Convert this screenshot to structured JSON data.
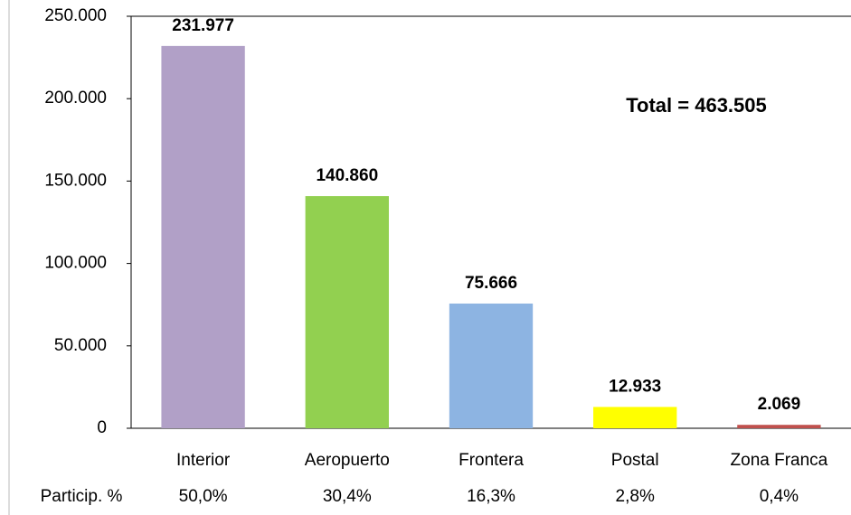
{
  "chart_data": {
    "type": "bar",
    "annotation": "Total = 463.505",
    "categories": [
      "Interior",
      "Aeropuerto",
      "Frontera",
      "Postal",
      "Zona Franca"
    ],
    "values": [
      231977,
      140860,
      75666,
      12933,
      2069
    ],
    "value_labels": [
      "231.977",
      "140.860",
      "75.666",
      "12.933",
      "2.069"
    ],
    "colors": [
      "#b1a0c7",
      "#92d050",
      "#8db4e2",
      "#ffff00",
      "#c0504d"
    ],
    "share_title": "Particip. %",
    "share_labels": [
      "50,0%",
      "30,4%",
      "16,3%",
      "2,8%",
      "0,4%"
    ],
    "ylim": [
      0,
      250000
    ],
    "yticks": [
      0,
      {
        "value": 50000,
        "label": "50.000"
      },
      {
        "value": 100000,
        "label": "100.000"
      },
      {
        "value": 150000,
        "label": "150.000"
      },
      {
        "value": 200000,
        "label": "200.000"
      },
      {
        "value": 250000,
        "label": "250.000"
      }
    ],
    "grid": false
  }
}
